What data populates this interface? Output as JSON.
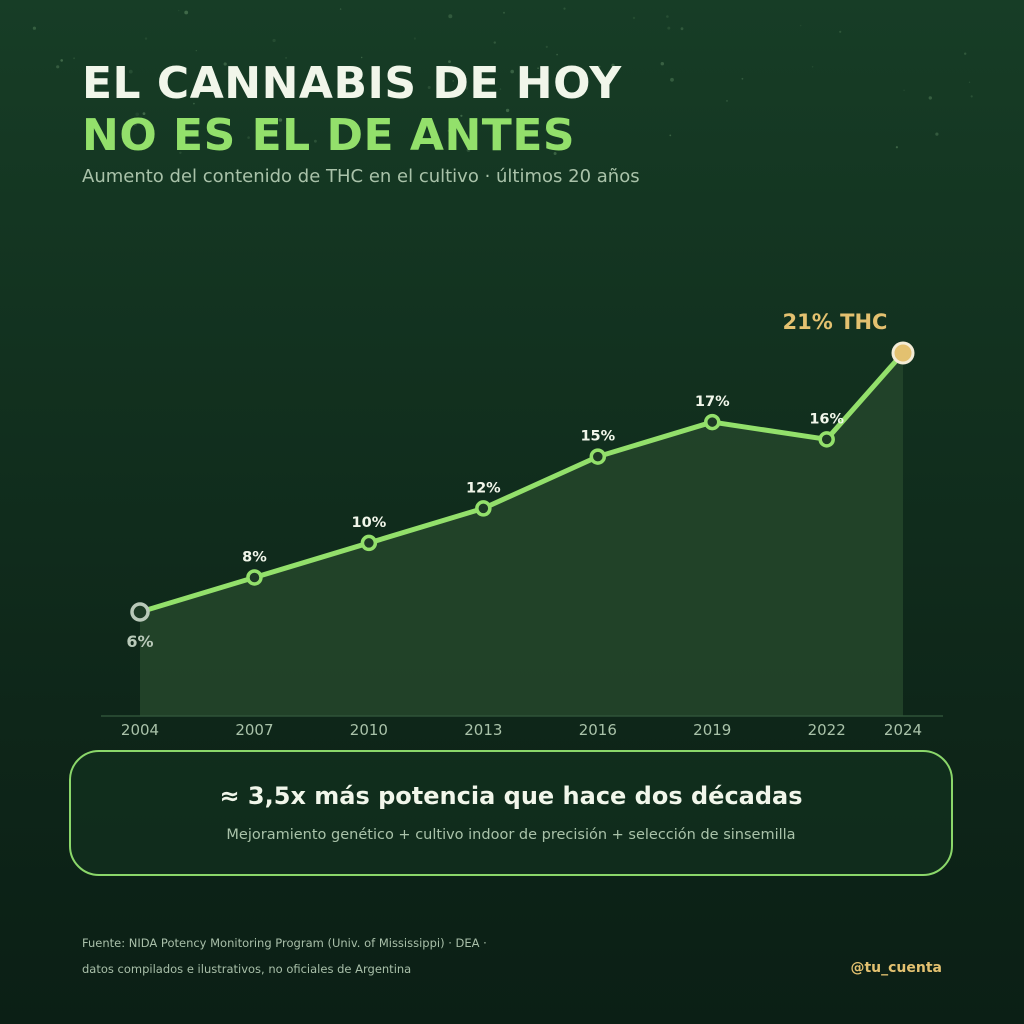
{
  "header": {
    "title_line1": "EL CANNABIS DE HOY",
    "title_line2": "NO ES EL DE ANTES",
    "subtitle": "Aumento del contenido de THC en el cultivo · últimos 20 años"
  },
  "chart_data": {
    "type": "line",
    "x": [
      2004,
      2007,
      2010,
      2013,
      2016,
      2019,
      2022,
      2024
    ],
    "series": [
      {
        "values": [
          6,
          8,
          10,
          12,
          15,
          17,
          16,
          21
        ]
      }
    ],
    "data_labels": [
      "6%",
      "8%",
      "10%",
      "12%",
      "15%",
      "17%",
      "16%",
      "21% THC"
    ],
    "xlabel": "",
    "ylabel": "",
    "grid": false,
    "area_fill": true
  },
  "callout": {
    "headline": "≈ 3,5x más potencia que hace dos décadas",
    "detail": "Mejoramiento genético + cultivo indoor de precisión + selección de sinsemilla"
  },
  "footer": {
    "source_line1": "Fuente: NIDA Potency Monitoring Program (Univ. of Mississippi) · DEA ·",
    "source_line2": "datos compilados e ilustrativos, no oficiales de Argentina",
    "handle": "@tu_cuenta"
  },
  "colors": {
    "line": "#93e06b",
    "highlight": "#e3c170",
    "start_point": "#b9c9b9",
    "area": "#24452a"
  }
}
